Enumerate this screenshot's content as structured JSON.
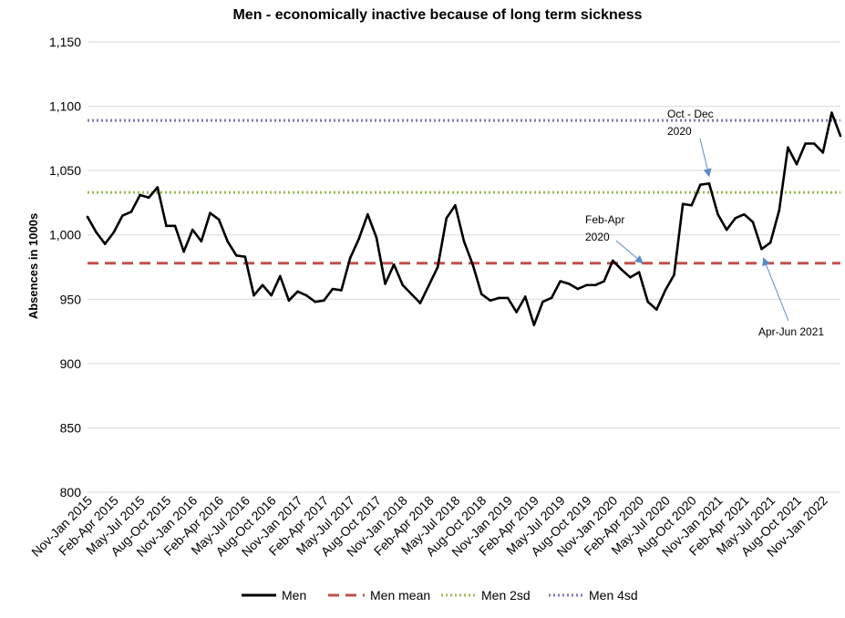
{
  "chart_data": {
    "type": "line",
    "title": "Men - economically inactive because of long term sickness",
    "xlabel": "",
    "ylabel": "Absences in 1000s",
    "ylim": [
      800,
      1150
    ],
    "yticks": [
      800,
      850,
      900,
      950,
      1000,
      1050,
      1100,
      1150
    ],
    "ytick_labels": [
      "800",
      "850",
      "900",
      "950",
      "1,000",
      "1,050",
      "1,100",
      "1,150"
    ],
    "grid": true,
    "legend_position": "bottom",
    "categories": [
      "Nov-Jan 2015",
      "Dec-Feb 2015",
      "Jan-Mar 2015",
      "Feb-Apr 2015",
      "Mar-May 2015",
      "Apr-Jun 2015",
      "May-Jul 2015",
      "Jun-Aug 2015",
      "Jul-Sep 2015",
      "Aug-Oct 2015",
      "Sep-Nov 2015",
      "Oct-Dec 2015",
      "Nov-Jan 2016",
      "Dec-Feb 2016",
      "Jan-Mar 2016",
      "Feb-Apr 2016",
      "Mar-May 2016",
      "Apr-Jun 2016",
      "May-Jul 2016",
      "Jun-Aug 2016",
      "Jul-Sep 2016",
      "Aug-Oct 2016",
      "Sep-Nov 2016",
      "Oct-Dec 2016",
      "Nov-Jan 2017",
      "Dec-Feb 2017",
      "Jan-Mar 2017",
      "Feb-Apr 2017",
      "Mar-May 2017",
      "Apr-Jun 2017",
      "May-Jul 2017",
      "Jun-Aug 2017",
      "Jul-Sep 2017",
      "Aug-Oct 2017",
      "Sep-Nov 2017",
      "Oct-Dec 2017",
      "Nov-Jan 2018",
      "Dec-Feb 2018",
      "Jan-Mar 2018",
      "Feb-Apr 2018",
      "Mar-May 2018",
      "Apr-Jun 2018",
      "May-Jul 2018",
      "Jun-Aug 2018",
      "Jul-Sep 2018",
      "Aug-Oct 2018",
      "Sep-Nov 2018",
      "Oct-Dec 2018",
      "Nov-Jan 2019",
      "Dec-Feb 2019",
      "Jan-Mar 2019",
      "Feb-Apr 2019",
      "Mar-May 2019",
      "Apr-Jun 2019",
      "May-Jul 2019",
      "Jun-Aug 2019",
      "Jul-Sep 2019",
      "Aug-Oct 2019",
      "Sep-Nov 2019",
      "Oct-Dec 2019",
      "Nov-Jan 2020",
      "Dec-Feb 2020",
      "Jan-Mar 2020",
      "Feb-Apr 2020",
      "Mar-May 2020",
      "Apr-Jun 2020",
      "May-Jul 2020",
      "Jun-Aug 2020",
      "Jul-Sep 2020",
      "Aug-Oct 2020",
      "Sep-Nov 2020",
      "Oct-Dec 2020",
      "Nov-Jan 2021",
      "Dec-Feb 2021",
      "Jan-Mar 2021",
      "Feb-Apr 2021",
      "Mar-May 2021",
      "Apr-Jun 2021",
      "May-Jul 2021",
      "Jun-Aug 2021",
      "Jul-Sep 2021",
      "Aug-Oct 2021",
      "Sep-Nov 2021",
      "Oct-Dec 2021",
      "Nov-Jan 2022",
      "Dec-Feb 2022",
      "Jan-Mar 2022"
    ],
    "xtick_labels_shown": [
      "Nov-Jan 2015",
      "Feb-Apr 2015",
      "May-Jul 2015",
      "Aug-Oct 2015",
      "Nov-Jan 2016",
      "Feb-Apr 2016",
      "May-Jul 2016",
      "Aug-Oct 2016",
      "Nov-Jan 2017",
      "Feb-Apr 2017",
      "May-Jul 2017",
      "Aug-Oct 2017",
      "Nov-Jan 2018",
      "Feb-Apr 2018",
      "May-Jul 2018",
      "Aug-Oct 2018",
      "Nov-Jan 2019",
      "Feb-Apr 2019",
      "May-Jul 2019",
      "Aug-Oct 2019",
      "Nov-Jan 2020",
      "Feb-Apr 2020",
      "May-Jul 2020",
      "Aug-Oct 2020",
      "Nov-Jan 2021",
      "Feb-Apr 2021",
      "May-Jul 2021",
      "Aug-Oct 2021",
      "Nov-Jan 2022"
    ],
    "series": [
      {
        "name": "Men",
        "style": "solid",
        "color": "#000000",
        "values": [
          1014,
          1002,
          993,
          1002,
          1015,
          1018,
          1031,
          1029,
          1037,
          1007,
          1007,
          987,
          1004,
          995,
          1017,
          1012,
          995,
          984,
          983,
          953,
          961,
          953,
          968,
          949,
          956,
          953,
          948,
          949,
          958,
          957,
          982,
          997,
          1016,
          998,
          962,
          977,
          961,
          954,
          947,
          961,
          975,
          1013,
          1023,
          995,
          977,
          954,
          949,
          951,
          951,
          940,
          952,
          930,
          948,
          951,
          964,
          962,
          958,
          961,
          961,
          964,
          980,
          973,
          967,
          971,
          948,
          942,
          957,
          969,
          1024,
          1023,
          1039,
          1040,
          1016,
          1004,
          1013,
          1016,
          1010,
          989,
          994,
          1019,
          1068,
          1055,
          1071,
          1071,
          1064,
          1095,
          1077
        ]
      },
      {
        "name": "Men mean",
        "style": "dashed",
        "color": "#c0504d",
        "value": 978
      },
      {
        "name": "Men 2sd",
        "style": "dotted",
        "color": "#9bbb59",
        "value": 1033
      },
      {
        "name": "Men 4sd",
        "style": "dotted",
        "color": "#7b78b8",
        "value": 1089
      }
    ],
    "annotations": [
      {
        "lines": [
          "Oct - Dec",
          "2020"
        ],
        "target_category": "Oct-Dec 2020"
      },
      {
        "lines": [
          "Feb-Apr",
          "2020"
        ],
        "target_category": "Feb-Apr 2020"
      },
      {
        "lines": [
          "Apr-Jun 2021"
        ],
        "target_category": "Apr-Jun 2021"
      }
    ],
    "annotation_arrow_color": "#5b8bc6"
  }
}
